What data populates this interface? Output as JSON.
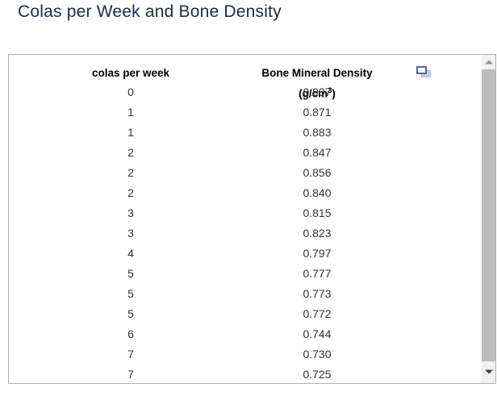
{
  "page": {
    "title": "Colas per Week and Bone Density"
  },
  "table": {
    "columns": {
      "col1_header": "colas per week",
      "col2_header_prefix": "Bone Mineral Density (g/cm",
      "col2_header_sup": "3",
      "col2_header_suffix": ")"
    },
    "rows": [
      {
        "colas": "0",
        "bmd": "0.907"
      },
      {
        "colas": "1",
        "bmd": "0.871"
      },
      {
        "colas": "1",
        "bmd": "0.883"
      },
      {
        "colas": "2",
        "bmd": "0.847"
      },
      {
        "colas": "2",
        "bmd": "0.856"
      },
      {
        "colas": "2",
        "bmd": "0.840"
      },
      {
        "colas": "3",
        "bmd": "0.815"
      },
      {
        "colas": "3",
        "bmd": "0.823"
      },
      {
        "colas": "4",
        "bmd": "0.797"
      },
      {
        "colas": "5",
        "bmd": "0.777"
      },
      {
        "colas": "5",
        "bmd": "0.773"
      },
      {
        "colas": "5",
        "bmd": "0.772"
      },
      {
        "colas": "6",
        "bmd": "0.744"
      },
      {
        "colas": "7",
        "bmd": "0.730"
      },
      {
        "colas": "7",
        "bmd": "0.725"
      }
    ]
  },
  "icons": {
    "popout": "popout-window-icon",
    "scroll_up": "scroll-up-arrow-icon",
    "scroll_down": "scroll-down-arrow-icon"
  },
  "colors": {
    "title_text": "#1f2b43",
    "header_text": "#000000",
    "body_text": "#333333",
    "panel_border": "#b0b0b0",
    "popout_front_border": "#4f5fa8",
    "popout_back_fill": "#c6cbea",
    "scrollbar_track": "#f1f1f1",
    "scrollbar_thumb": "#bdbdbd"
  }
}
